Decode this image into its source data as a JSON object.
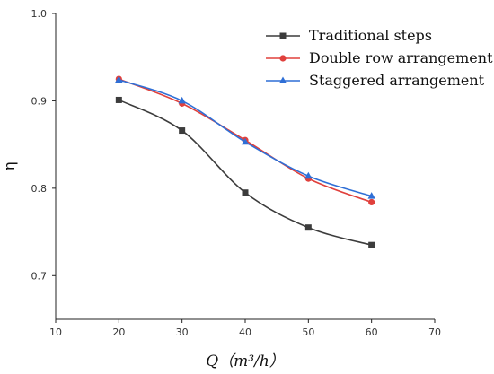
{
  "chart_data": {
    "type": "line",
    "xlabel": "Q（m³/h）",
    "ylabel": "η",
    "xlim": [
      10,
      70
    ],
    "ylim": [
      0.65,
      1.0
    ],
    "x_ticks": [
      10,
      20,
      30,
      40,
      50,
      60,
      70
    ],
    "y_ticks": [
      0.7,
      0.8,
      0.9,
      1.0
    ],
    "grid": false,
    "legend_position": "top-right",
    "x": [
      20,
      30,
      40,
      50,
      60
    ],
    "series": [
      {
        "name": "Traditional steps",
        "color": "#3c3c3c",
        "marker": "square",
        "values": [
          0.901,
          0.866,
          0.795,
          0.755,
          0.735
        ]
      },
      {
        "name": "Double row arrangement",
        "color": "#e0403c",
        "marker": "circle",
        "values": [
          0.925,
          0.897,
          0.855,
          0.811,
          0.784
        ]
      },
      {
        "name": "Staggered arrangement",
        "color": "#2f6fd6",
        "marker": "triangle",
        "values": [
          0.924,
          0.9,
          0.853,
          0.814,
          0.791
        ]
      }
    ]
  }
}
